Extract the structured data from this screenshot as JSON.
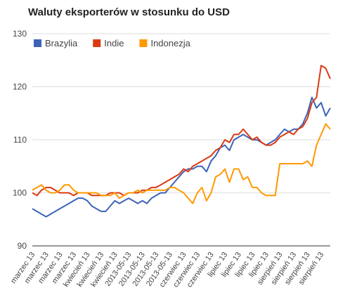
{
  "chart_data": {
    "type": "line",
    "title": "Waluty eksporterów w stosunku do USD",
    "categories": [
      "marzec 13",
      null,
      null,
      "marzec 13",
      null,
      null,
      "marzec 13",
      null,
      null,
      "marzec 13",
      null,
      null,
      "kwiecień 13",
      null,
      null,
      "kwiecień 13",
      null,
      null,
      "kwiecień 13",
      null,
      null,
      "2013-05-13",
      null,
      null,
      "2013-05-13",
      null,
      null,
      "2013-05-13",
      null,
      null,
      "2013-05-13",
      null,
      null,
      "czerwiec 13",
      null,
      null,
      "czerwiec 13",
      null,
      null,
      "czerwiec 13",
      null,
      null,
      "lipiec 13",
      null,
      null,
      "lipiec 13",
      null,
      null,
      "lipiec 13",
      null,
      null,
      "lipiec 13",
      null,
      null,
      "sierpień 13",
      null,
      null,
      "sierpień 13",
      null,
      null,
      "sierpień 13",
      null,
      null,
      "sierpień 13",
      null,
      null
    ],
    "series": [
      {
        "name": "Brazylia",
        "color": "#3d63b8",
        "values": [
          97,
          96.5,
          96,
          95.5,
          96,
          96.5,
          97,
          97.5,
          98,
          98.5,
          99,
          99,
          98.5,
          97.5,
          97,
          96.5,
          96.5,
          97.5,
          98.5,
          98,
          98.5,
          99,
          98.5,
          98,
          98.5,
          98,
          99,
          99.5,
          100,
          100,
          101,
          102,
          103,
          104,
          104.5,
          104.5,
          105,
          105,
          104,
          106,
          107,
          108.5,
          109,
          108,
          110,
          110.5,
          111,
          110.5,
          110,
          110,
          109.5,
          109,
          109.5,
          110,
          111,
          112,
          111.5,
          112,
          112,
          113,
          115,
          118,
          116,
          117,
          114.5,
          116
        ]
      },
      {
        "name": "Indie",
        "color": "#dc3912",
        "values": [
          100,
          99.5,
          100.5,
          101,
          101,
          100.5,
          100,
          100,
          100,
          99.5,
          100,
          100,
          100,
          99.5,
          99.5,
          99.5,
          99.5,
          100,
          100,
          100,
          99.5,
          100,
          100,
          100,
          100.5,
          100.5,
          101,
          101,
          101.5,
          102,
          102.5,
          103,
          103.5,
          104.5,
          104,
          105,
          105.5,
          106,
          106.5,
          107,
          108,
          108.5,
          110,
          109.5,
          111,
          111,
          112,
          111,
          110,
          110.5,
          109.5,
          109,
          109,
          109.5,
          110.5,
          111,
          111.5,
          111,
          112,
          112.5,
          114,
          117,
          118,
          124,
          123.5,
          121.5
        ]
      },
      {
        "name": "Indonezja",
        "color": "#ff9900",
        "values": [
          100.5,
          101,
          101.5,
          100.5,
          100,
          100,
          100.5,
          101.5,
          101.5,
          100.5,
          100,
          100,
          100,
          100,
          100,
          99.5,
          99.5,
          99.5,
          100,
          99,
          99.5,
          100,
          100,
          100.5,
          100,
          100.5,
          100.5,
          100.5,
          100.5,
          100.5,
          101,
          101,
          100.5,
          100,
          99,
          98,
          100,
          101,
          98.5,
          100,
          103,
          103.5,
          104.5,
          102,
          104.5,
          104.5,
          102.5,
          103,
          101,
          101,
          100,
          99.5,
          99.5,
          99.5,
          105.5,
          105.5,
          105.5,
          105.5,
          105.5,
          105.5,
          106,
          105,
          109,
          111,
          113,
          112
        ]
      }
    ],
    "ylim": [
      90,
      130
    ],
    "yticks": [
      90,
      100,
      110,
      120,
      130
    ],
    "grid": true,
    "legend": "top"
  }
}
